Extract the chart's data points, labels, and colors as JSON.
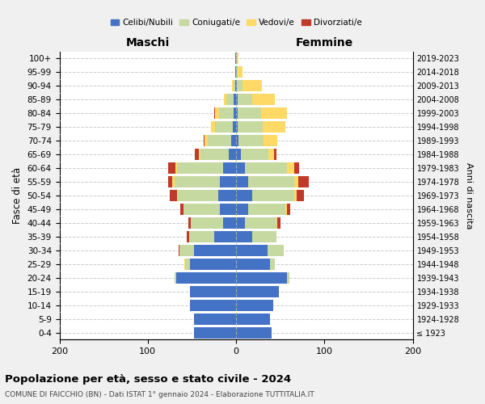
{
  "age_groups": [
    "100+",
    "95-99",
    "90-94",
    "85-89",
    "80-84",
    "75-79",
    "70-74",
    "65-69",
    "60-64",
    "55-59",
    "50-54",
    "45-49",
    "40-44",
    "35-39",
    "30-34",
    "25-29",
    "20-24",
    "15-19",
    "10-14",
    "5-9",
    "0-4"
  ],
  "birth_years": [
    "≤ 1923",
    "1924-1928",
    "1929-1933",
    "1934-1938",
    "1939-1943",
    "1944-1948",
    "1949-1953",
    "1954-1958",
    "1959-1963",
    "1964-1968",
    "1969-1973",
    "1974-1978",
    "1979-1983",
    "1984-1988",
    "1989-1993",
    "1994-1998",
    "1999-2003",
    "2004-2008",
    "2009-2013",
    "2014-2018",
    "2019-2023"
  ],
  "maschi_celibi": [
    1,
    1,
    1,
    3,
    3,
    4,
    6,
    8,
    15,
    18,
    20,
    18,
    15,
    25,
    48,
    52,
    68,
    52,
    52,
    48,
    48
  ],
  "maschi_coniugati": [
    0,
    0,
    2,
    8,
    16,
    20,
    26,
    32,
    52,
    52,
    46,
    42,
    36,
    28,
    16,
    6,
    2,
    0,
    0,
    0,
    0
  ],
  "maschi_vedovi": [
    0,
    0,
    2,
    3,
    5,
    4,
    4,
    2,
    2,
    2,
    1,
    0,
    0,
    0,
    0,
    1,
    0,
    0,
    0,
    0,
    0
  ],
  "maschi_divorziati": [
    0,
    0,
    0,
    0,
    1,
    0,
    1,
    5,
    8,
    5,
    8,
    3,
    3,
    3,
    1,
    0,
    0,
    0,
    0,
    0,
    0
  ],
  "femmine_celibi": [
    0,
    0,
    1,
    2,
    2,
    2,
    3,
    5,
    10,
    14,
    18,
    14,
    10,
    18,
    36,
    38,
    58,
    48,
    42,
    38,
    40
  ],
  "femmine_coniugati": [
    1,
    2,
    6,
    16,
    26,
    28,
    28,
    32,
    48,
    52,
    48,
    42,
    36,
    28,
    18,
    6,
    2,
    0,
    0,
    0,
    0
  ],
  "femmine_vedovi": [
    2,
    5,
    22,
    26,
    30,
    26,
    16,
    6,
    8,
    4,
    3,
    2,
    1,
    0,
    0,
    0,
    0,
    0,
    0,
    0,
    0
  ],
  "femmine_divorziati": [
    0,
    0,
    0,
    0,
    0,
    0,
    0,
    3,
    5,
    12,
    8,
    3,
    3,
    0,
    0,
    0,
    0,
    0,
    0,
    0,
    0
  ],
  "colors": {
    "celibi": "#4472c4",
    "coniugati": "#c5d9a0",
    "vedovi": "#ffd966",
    "divorziati": "#c0392b"
  },
  "xlim": [
    -200,
    200
  ],
  "xticks": [
    -200,
    -100,
    0,
    100,
    200
  ],
  "xticklabels": [
    "200",
    "100",
    "0",
    "100",
    "200"
  ],
  "title": "Popolazione per età, sesso e stato civile - 2024",
  "subtitle": "COMUNE DI FAICCHIO (BN) - Dati ISTAT 1° gennaio 2024 - Elaborazione TUTTITALIA.IT",
  "ylabel_left": "Fasce di età",
  "ylabel_right": "Anni di nascita",
  "label_maschi": "Maschi",
  "label_femmine": "Femmine",
  "legend_labels": [
    "Celibi/Nubili",
    "Coniugati/e",
    "Vedovi/e",
    "Divorziati/e"
  ],
  "background_color": "#f0f0f0",
  "plot_bg_color": "#ffffff"
}
